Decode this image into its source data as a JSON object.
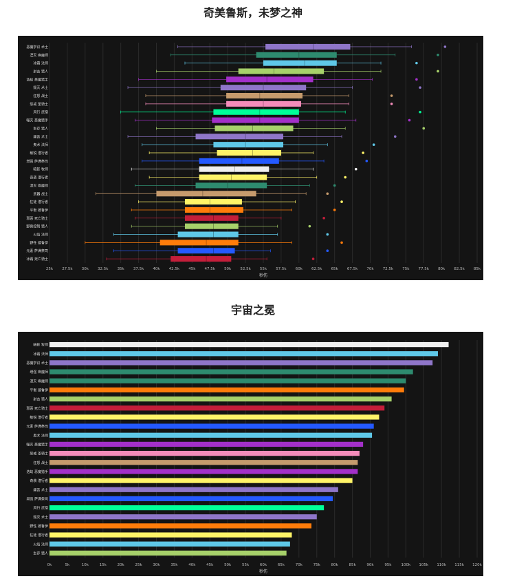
{
  "chart_data": [
    {
      "type": "box",
      "title": "奇美鲁斯，未梦之神",
      "xlabel": "秒伤",
      "ylabel": "",
      "xlim": [
        25000,
        85000
      ],
      "xticks": [
        25000,
        27500,
        30000,
        32500,
        35000,
        37500,
        40000,
        42500,
        45000,
        47500,
        50000,
        52500,
        55000,
        57500,
        60000,
        62500,
        65000,
        67500,
        70000,
        72500,
        75000,
        77500,
        80000,
        82500,
        85000
      ],
      "xtick_labels": [
        "25k",
        "27.5k",
        "30k",
        "32.5k",
        "35k",
        "37.5k",
        "40k",
        "42.5k",
        "45k",
        "47.5k",
        "50k",
        "52.5k",
        "55k",
        "57.5k",
        "60k",
        "62.5k",
        "65k",
        "67.5k",
        "70k",
        "72.5k",
        "75k",
        "77.5k",
        "80k",
        "82.5k",
        "85k"
      ],
      "grid": true,
      "series": [
        {
          "name": "恶魔学识 术士",
          "color": "#8f76c9",
          "whisker_low": 43000,
          "q1": 55300,
          "median": 62000,
          "q3": 67200,
          "whisker_high": 75800,
          "outlier": 80500
        },
        {
          "name": "湮灭 唤魔师",
          "color": "#2e8b6f",
          "whisker_low": 42000,
          "q1": 54000,
          "median": 60000,
          "q3": 65300,
          "whisker_high": 73500,
          "outlier": 79500
        },
        {
          "name": "冰霜 法师",
          "color": "#5fc8e8",
          "whisker_low": 44000,
          "q1": 55000,
          "median": 60800,
          "q3": 65300,
          "whisker_high": 71500,
          "outlier": 76500
        },
        {
          "name": "射击 猎人",
          "color": "#a7d16a",
          "whisker_low": 40000,
          "q1": 51500,
          "median": 56500,
          "q3": 63500,
          "whisker_high": 71500,
          "outlier": 79500
        },
        {
          "name": "浩劫 恶魔猎手",
          "color": "#a330c9",
          "whisker_low": 37500,
          "q1": 49800,
          "median": 55500,
          "q3": 62000,
          "whisker_high": 70300,
          "outlier": 76500
        },
        {
          "name": "毁灭 术士",
          "color": "#8f76c9",
          "whisker_low": 36000,
          "q1": 49000,
          "median": 55000,
          "q3": 61000,
          "whisker_high": 67500,
          "outlier": 77000
        },
        {
          "name": "狂怒 战士",
          "color": "#c69b6d",
          "whisker_low": 38500,
          "q1": 49800,
          "median": 54500,
          "q3": 60500,
          "whisker_high": 67000,
          "outlier": 73000
        },
        {
          "name": "惩戒 圣骑士",
          "color": "#f48cba",
          "whisker_low": 38500,
          "q1": 49800,
          "median": 55000,
          "q3": 60300,
          "whisker_high": 67000,
          "outlier": 73000
        },
        {
          "name": "风行 武僧",
          "color": "#00ff98",
          "whisker_low": 35000,
          "q1": 48000,
          "median": 54500,
          "q3": 60000,
          "whisker_high": 66500,
          "outlier": 77000
        },
        {
          "name": "噬灭 恶魔猎手",
          "color": "#a330c9",
          "whisker_low": 37000,
          "q1": 47800,
          "median": 54500,
          "q3": 60000,
          "whisker_high": 68000,
          "outlier": 75500
        },
        {
          "name": "生存 猎人",
          "color": "#a7d16a",
          "whisker_low": 40000,
          "q1": 48200,
          "median": 53500,
          "q3": 59200,
          "whisker_high": 66500,
          "outlier": 77500
        },
        {
          "name": "痛苦 术士",
          "color": "#8f76c9",
          "whisker_low": 36000,
          "q1": 45500,
          "median": 52500,
          "q3": 57800,
          "whisker_high": 66000,
          "outlier": 73500
        },
        {
          "name": "奥术 法师",
          "color": "#5fc8e8",
          "whisker_low": 38000,
          "q1": 48000,
          "median": 52500,
          "q3": 57800,
          "whisker_high": 64000,
          "outlier": 70500
        },
        {
          "name": "敏锐 潜行者",
          "color": "#fff468",
          "whisker_low": 39000,
          "q1": 48500,
          "median": 53500,
          "q3": 57500,
          "whisker_high": 62000,
          "outlier": 69000
        },
        {
          "name": "增强 萨满祭司",
          "color": "#2459ff",
          "whisker_low": 38000,
          "q1": 46000,
          "median": 52000,
          "q3": 57200,
          "whisker_high": 63500,
          "outlier": 69500
        },
        {
          "name": "暗影 牧师",
          "color": "#f0f0f0",
          "whisker_low": 36500,
          "q1": 46000,
          "median": 51000,
          "q3": 55800,
          "whisker_high": 62000,
          "outlier": 68000
        },
        {
          "name": "奇袭 潜行者",
          "color": "#fff468",
          "whisker_low": 39000,
          "q1": 46000,
          "median": 50500,
          "q3": 55500,
          "whisker_high": 62500,
          "outlier": 66500
        },
        {
          "name": "湮灭 唤魔师",
          "color": "#2e8b6f",
          "whisker_low": 37000,
          "q1": 45500,
          "median": 50000,
          "q3": 55500,
          "whisker_high": 61500,
          "outlier": 65000
        },
        {
          "name": "武器 战士",
          "color": "#c69b6d",
          "whisker_low": 31500,
          "q1": 40000,
          "median": 46500,
          "q3": 54000,
          "whisker_high": 61000,
          "outlier": 64000
        },
        {
          "name": "狂徒 潜行者",
          "color": "#fff468",
          "whisker_low": 37500,
          "q1": 44000,
          "median": 47500,
          "q3": 52000,
          "whisker_high": 59500,
          "outlier": 66000
        },
        {
          "name": "平衡 德鲁伊",
          "color": "#ff7c0a",
          "whisker_low": 36500,
          "q1": 44000,
          "median": 47500,
          "q3": 52200,
          "whisker_high": 59000,
          "outlier": 65000
        },
        {
          "name": "邪恶 死亡骑士",
          "color": "#c41e3a",
          "whisker_low": 37000,
          "q1": 44000,
          "median": 48000,
          "q3": 51500,
          "whisker_high": 57500,
          "outlier": 63500
        },
        {
          "name": "野兽控制 猎人",
          "color": "#a7d16a",
          "whisker_low": 36500,
          "q1": 44000,
          "median": 48000,
          "q3": 51500,
          "whisker_high": 57000,
          "outlier": 61500
        },
        {
          "name": "火焰 法师",
          "color": "#5fc8e8",
          "whisker_low": 34000,
          "q1": 43000,
          "median": 48000,
          "q3": 51500,
          "whisker_high": 57000,
          "outlier": 64000
        },
        {
          "name": "野性 德鲁伊",
          "color": "#ff7c0a",
          "whisker_low": 30000,
          "q1": 40500,
          "median": 47000,
          "q3": 51500,
          "whisker_high": 59000,
          "outlier": 66000
        },
        {
          "name": "元素 萨满祭司",
          "color": "#2459ff",
          "whisker_low": 34000,
          "q1": 43000,
          "median": 48000,
          "q3": 51000,
          "whisker_high": 56000,
          "outlier": 64000
        },
        {
          "name": "冰霜 死亡骑士",
          "color": "#c41e3a",
          "whisker_low": 33000,
          "q1": 42000,
          "median": 47000,
          "q3": 50500,
          "whisker_high": 55500,
          "outlier": 62000
        }
      ]
    },
    {
      "type": "bar",
      "orientation": "horizontal",
      "title": "宇宙之冕",
      "xlabel": "秒伤",
      "ylabel": "",
      "xlim": [
        0,
        120000
      ],
      "xticks": [
        0,
        5000,
        10000,
        15000,
        20000,
        25000,
        30000,
        35000,
        40000,
        45000,
        50000,
        55000,
        60000,
        65000,
        70000,
        75000,
        80000,
        85000,
        90000,
        95000,
        100000,
        105000,
        110000,
        115000,
        120000
      ],
      "xtick_labels": [
        "0k",
        "5k",
        "10k",
        "15k",
        "20k",
        "25k",
        "30k",
        "35k",
        "40k",
        "45k",
        "50k",
        "55k",
        "60k",
        "65k",
        "70k",
        "75k",
        "80k",
        "85k",
        "90k",
        "95k",
        "100k",
        "105k",
        "110k",
        "115k",
        "120k"
      ],
      "grid": true,
      "categories": [
        "暗影 牧师",
        "冰霜 法师",
        "恶魔学识 术士",
        "增强 唤魔师",
        "湮灭 唤魔师",
        "平衡 德鲁伊",
        "射击 猎人",
        "邪恶 死亡骑士",
        "敏锐 潜行者",
        "元素 萨满祭司",
        "奥术 法师",
        "噬灭 恶魔猎手",
        "惩戒 圣骑士",
        "狂怒 战士",
        "浩劫 恶魔猎手",
        "奇袭 潜行者",
        "痛苦 术士",
        "增强 萨满祭司",
        "风行 武僧",
        "毁灭 术士",
        "野性 德鲁伊",
        "狂徒 潜行者",
        "火焰 法师",
        "生存 猎人"
      ],
      "values": [
        112000,
        109000,
        107500,
        102000,
        100000,
        99500,
        96000,
        94000,
        92500,
        91000,
        90500,
        88000,
        87000,
        86500,
        86500,
        85000,
        81000,
        79500,
        77000,
        75000,
        73500,
        68000,
        67500,
        66500
      ],
      "colors": [
        "#f0f0f0",
        "#5fc8e8",
        "#8f76c9",
        "#2e8b6f",
        "#2e8b6f",
        "#ff7c0a",
        "#a7d16a",
        "#c41e3a",
        "#fff468",
        "#2459ff",
        "#5fc8e8",
        "#a330c9",
        "#f48cba",
        "#c69b6d",
        "#a330c9",
        "#fff468",
        "#8f76c9",
        "#2459ff",
        "#00ff98",
        "#8f76c9",
        "#ff7c0a",
        "#fff468",
        "#5fc8e8",
        "#a7d16a"
      ]
    }
  ]
}
